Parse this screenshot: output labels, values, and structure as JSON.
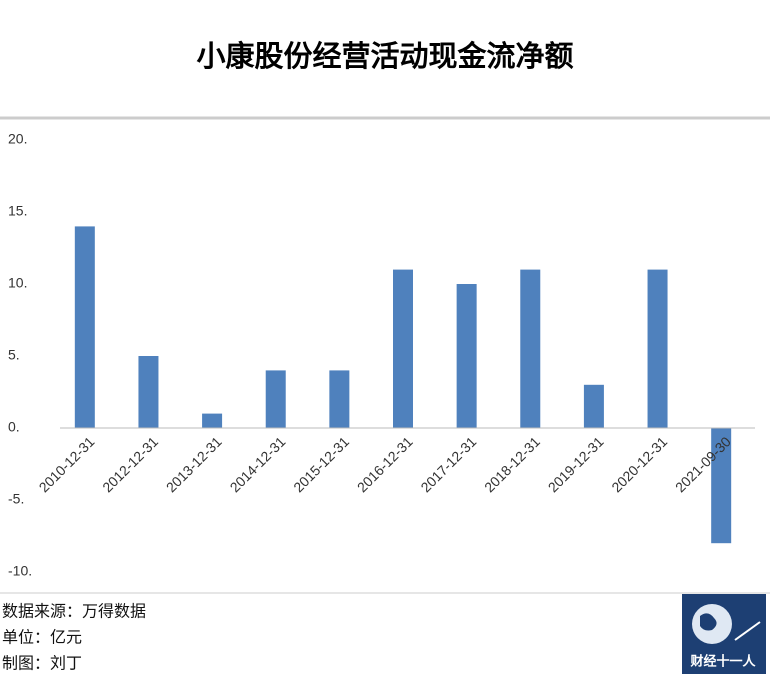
{
  "chart_data": {
    "type": "bar",
    "title": "小康股份经营活动现金流净额",
    "categories": [
      "2010-12-31",
      "2012-12-31",
      "2013-12-31",
      "2014-12-31",
      "2015-12-31",
      "2016-12-31",
      "2017-12-31",
      "2018-12-31",
      "2019-12-31",
      "2020-12-31",
      "2021-09-30"
    ],
    "values": [
      14,
      5,
      1,
      4,
      4,
      11,
      10,
      11,
      3,
      11,
      -8
    ],
    "color": "#4f81bd",
    "ylim": [
      -10,
      20
    ],
    "yticks": [
      {
        "value": 20,
        "label": "20."
      },
      {
        "value": 15,
        "label": "15."
      },
      {
        "value": 10,
        "label": "10."
      },
      {
        "value": 5,
        "label": "5."
      },
      {
        "value": 0,
        "label": "0."
      },
      {
        "value": -5,
        "label": "-5."
      },
      {
        "value": -10,
        "label": "-10."
      }
    ],
    "grid": false
  },
  "footer": {
    "source": "数据来源：万得数据",
    "unit": "单位：亿元",
    "author": "制图：刘丁",
    "logo": "财经十一人"
  }
}
